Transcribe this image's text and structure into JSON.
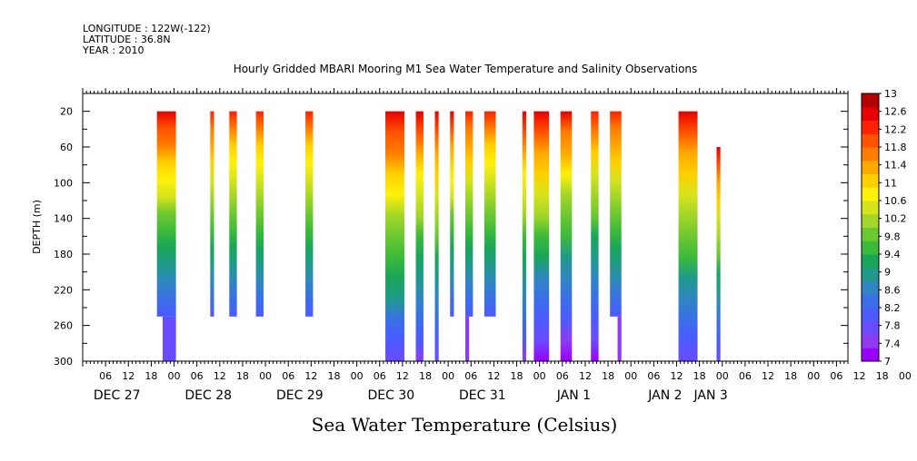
{
  "header": {
    "longitude": "LONGITUDE : 122W(-122)",
    "latitude": "LATITUDE : 36.8N",
    "year": "YEAR : 2010"
  },
  "chart_data": {
    "type": "heatmap",
    "title": "Hourly Gridded MBARI Mooring M1 Sea Water Temperature and Salinity Observations",
    "xlabel": "",
    "ylabel": "DEPTH (m)",
    "bottom_title": "Sea Water Temperature (Celsius)",
    "x_range_hours": [
      0,
      201
    ],
    "y_range": [
      300,
      0
    ],
    "y_ticks": [
      20,
      60,
      100,
      140,
      180,
      220,
      260,
      300
    ],
    "x_hour_tick_labels": [
      "06",
      "12",
      "18",
      "00",
      "06",
      "12",
      "18",
      "00",
      "06",
      "12",
      "18",
      "00",
      "06",
      "12",
      "18",
      "00",
      "06",
      "12",
      "18",
      "00",
      "06",
      "12",
      "18",
      "00",
      "06",
      "12",
      "18",
      "00",
      "06",
      "12",
      "18",
      "00",
      "06",
      "12",
      "18",
      "00",
      "06"
    ],
    "x_day_labels": [
      {
        "label": "DEC 27",
        "hour": 9
      },
      {
        "label": "DEC 28",
        "hour": 33
      },
      {
        "label": "DEC 29",
        "hour": 57
      },
      {
        "label": "DEC 30",
        "hour": 81
      },
      {
        "label": "DEC 31",
        "hour": 105
      },
      {
        "label": "JAN 1",
        "hour": 129
      },
      {
        "label": "JAN 2",
        "hour": 153
      },
      {
        "label": "JAN 3",
        "hour": 165
      }
    ],
    "colorbar": {
      "min": 7,
      "max": 13,
      "tick_labels": [
        "13",
        "12.6",
        "12.2",
        "11.8",
        "11.4",
        "11",
        "10.6",
        "10.2",
        "9.8",
        "9.4",
        "9",
        "8.6",
        "8.2",
        "7.8",
        "7.4",
        "7"
      ],
      "colors": [
        "#9b00ff",
        "#8f3cf0",
        "#6a4bff",
        "#4b5bff",
        "#3a6fe8",
        "#2f86c2",
        "#1f9a8c",
        "#1aa65a",
        "#3cba3a",
        "#6cc830",
        "#a2d628",
        "#d6e41c",
        "#fff10a",
        "#ffd000",
        "#ffa800",
        "#ff7d00",
        "#ff5200",
        "#ff2200",
        "#e60000",
        "#b40000"
      ]
    },
    "series": [
      {
        "start_hour": 19.5,
        "end_hour": 24.5,
        "top": 20,
        "bottom": 250,
        "surface_temp": 12.6,
        "bottom_temp": 8.0
      },
      {
        "start_hour": 21,
        "end_hour": 24.5,
        "top": 250,
        "bottom": 300,
        "surface_temp": 7.9,
        "bottom_temp": 7.7
      },
      {
        "start_hour": 33.5,
        "end_hour": 34.5,
        "top": 20,
        "bottom": 250,
        "surface_temp": 12.3,
        "bottom_temp": 8.1
      },
      {
        "start_hour": 38.5,
        "end_hour": 40.5,
        "top": 20,
        "bottom": 250,
        "surface_temp": 12.1,
        "bottom_temp": 8.1
      },
      {
        "start_hour": 45.5,
        "end_hour": 47.5,
        "top": 20,
        "bottom": 250,
        "surface_temp": 12.1,
        "bottom_temp": 8.1
      },
      {
        "start_hour": 58.5,
        "end_hour": 60.5,
        "top": 20,
        "bottom": 250,
        "surface_temp": 12.1,
        "bottom_temp": 8.1
      },
      {
        "start_hour": 79.5,
        "end_hour": 84.5,
        "top": 20,
        "bottom": 300,
        "surface_temp": 12.7,
        "bottom_temp": 7.8
      },
      {
        "start_hour": 87.5,
        "end_hour": 89.5,
        "top": 20,
        "bottom": 300,
        "surface_temp": 12.5,
        "bottom_temp": 7.6
      },
      {
        "start_hour": 92.5,
        "end_hour": 93.5,
        "top": 20,
        "bottom": 300,
        "surface_temp": 12.5,
        "bottom_temp": 7.7
      },
      {
        "start_hour": 96.5,
        "end_hour": 97.5,
        "top": 20,
        "bottom": 250,
        "surface_temp": 12.5,
        "bottom_temp": 8.1
      },
      {
        "start_hour": 100.5,
        "end_hour": 102.5,
        "top": 20,
        "bottom": 250,
        "surface_temp": 12.3,
        "bottom_temp": 8.1
      },
      {
        "start_hour": 100.5,
        "end_hour": 101.5,
        "top": 250,
        "bottom": 300,
        "surface_temp": 7.6,
        "bottom_temp": 7.4
      },
      {
        "start_hour": 105.5,
        "end_hour": 108.5,
        "top": 20,
        "bottom": 250,
        "surface_temp": 12.1,
        "bottom_temp": 8.1
      },
      {
        "start_hour": 115.5,
        "end_hour": 116.5,
        "top": 20,
        "bottom": 300,
        "surface_temp": 12.5,
        "bottom_temp": 7.6
      },
      {
        "start_hour": 118.5,
        "end_hour": 122.5,
        "top": 20,
        "bottom": 300,
        "surface_temp": 12.7,
        "bottom_temp": 7.3
      },
      {
        "start_hour": 125.5,
        "end_hour": 128.5,
        "top": 20,
        "bottom": 300,
        "surface_temp": 12.5,
        "bottom_temp": 7.2
      },
      {
        "start_hour": 133.5,
        "end_hour": 135.5,
        "top": 20,
        "bottom": 300,
        "surface_temp": 12.2,
        "bottom_temp": 7.3
      },
      {
        "start_hour": 138.5,
        "end_hour": 141.5,
        "top": 20,
        "bottom": 250,
        "surface_temp": 12.3,
        "bottom_temp": 8.1
      },
      {
        "start_hour": 140.5,
        "end_hour": 141.5,
        "top": 250,
        "bottom": 300,
        "surface_temp": 7.6,
        "bottom_temp": 7.4
      },
      {
        "start_hour": 156.5,
        "end_hour": 161.5,
        "top": 20,
        "bottom": 300,
        "surface_temp": 12.6,
        "bottom_temp": 7.7
      },
      {
        "start_hour": 166.5,
        "end_hour": 167.5,
        "top": 60,
        "bottom": 300,
        "surface_temp": 12.5,
        "bottom_temp": 7.7
      }
    ]
  }
}
